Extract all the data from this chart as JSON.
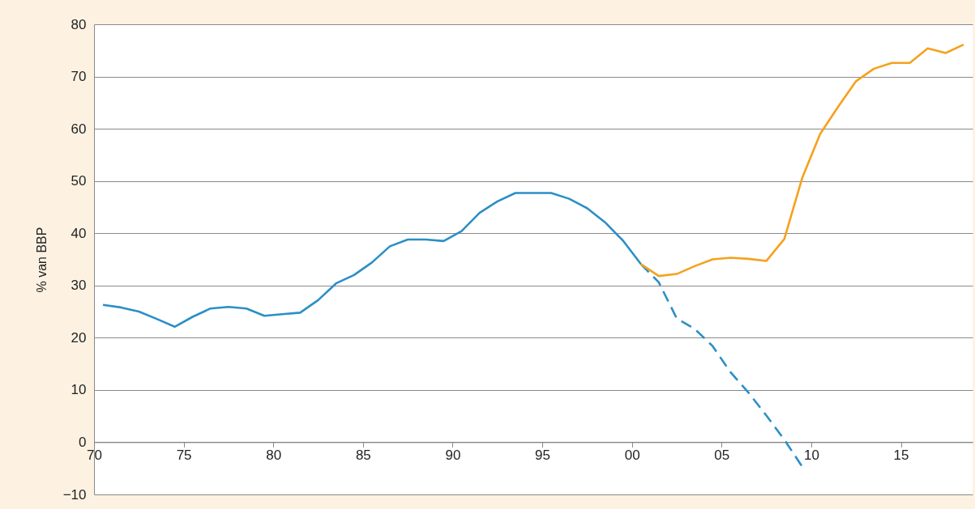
{
  "chart_data": {
    "type": "line",
    "ylabel": "% van BBP",
    "xlim": [
      1970,
      2019
    ],
    "ylim": [
      -10,
      80
    ],
    "xticks": [
      {
        "value": 1970,
        "label": "70"
      },
      {
        "value": 1975,
        "label": "75"
      },
      {
        "value": 1980,
        "label": "80"
      },
      {
        "value": 1985,
        "label": "85"
      },
      {
        "value": 1990,
        "label": "90"
      },
      {
        "value": 1995,
        "label": "95"
      },
      {
        "value": 2000,
        "label": "00"
      },
      {
        "value": 2005,
        "label": "05"
      },
      {
        "value": 2010,
        "label": "10"
      },
      {
        "value": 2015,
        "label": "15"
      }
    ],
    "yticks": [
      {
        "value": -10,
        "label": "−10"
      },
      0,
      10,
      20,
      30,
      40,
      50,
      60,
      70,
      80
    ],
    "grid": "y",
    "marker": "none",
    "series": [
      {
        "color": "#2b8fc7",
        "line_style": "solid",
        "x": [
          1970.5,
          1971.5,
          1972.5,
          1973.5,
          1974.5,
          1975.5,
          1976.5,
          1977.5,
          1978.5,
          1979.5,
          1980.5,
          1981.5,
          1982.5,
          1983.5,
          1984.5,
          1985.5,
          1986.5,
          1987.5,
          1988.5,
          1989.5,
          1990.5,
          1991.5,
          1992.5,
          1993.5,
          1994.5,
          1995.5,
          1996.5,
          1997.5,
          1998.5,
          1999.5,
          2000.5
        ],
        "values": [
          26.3,
          25.8,
          25.0,
          23.6,
          22.1,
          24.0,
          25.6,
          25.9,
          25.6,
          24.2,
          24.5,
          24.8,
          27.2,
          30.4,
          32.0,
          34.4,
          37.5,
          38.8,
          38.8,
          38.5,
          40.4,
          43.9,
          46.1,
          47.7,
          47.7,
          47.7,
          46.6,
          44.8,
          42.1,
          38.6,
          34.1
        ]
      },
      {
        "color": "#2b8fc7",
        "line_style": "dashed",
        "x": [
          2000.5,
          2001.5,
          2002.5,
          2003.5,
          2004.5,
          2005.5,
          2006.5,
          2007.5,
          2008.5,
          2009.5
        ],
        "values": [
          34.1,
          30.6,
          23.7,
          21.7,
          18.4,
          13.4,
          9.5,
          5.1,
          0.5,
          -4.7
        ]
      },
      {
        "color": "#f5a11d",
        "line_style": "solid",
        "x": [
          2000.5,
          2001.5,
          2002.5,
          2003.5,
          2004.5,
          2005.5,
          2006.5,
          2007.5,
          2008.5,
          2009.5,
          2010.5,
          2011.5,
          2012.5,
          2013.5,
          2014.5,
          2015.5,
          2016.5,
          2017.5,
          2018.5
        ],
        "values": [
          34.1,
          31.8,
          32.2,
          33.7,
          35.0,
          35.3,
          35.1,
          34.7,
          38.9,
          50.6,
          59.0,
          64.2,
          69.1,
          71.5,
          72.6,
          72.6,
          75.4,
          74.5,
          76.1
        ]
      }
    ]
  }
}
